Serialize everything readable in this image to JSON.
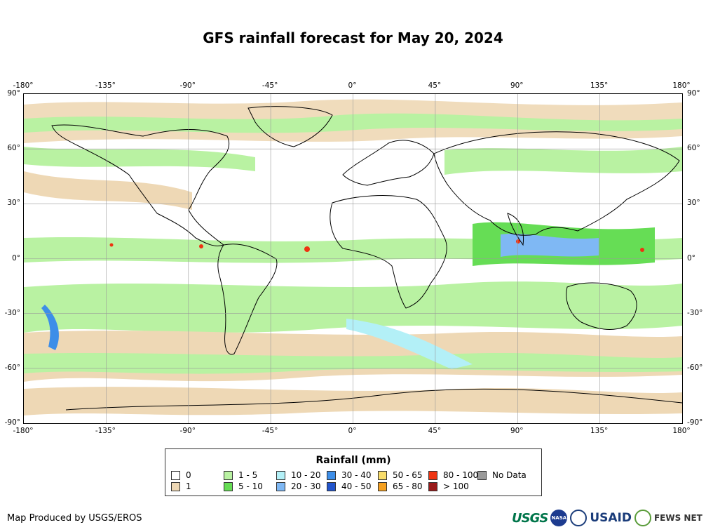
{
  "title": "GFS rainfall forecast for May 20, 2024",
  "map": {
    "lon_ticks": [
      "-180°",
      "-135°",
      "-90°",
      "-45°",
      "0°",
      "45°",
      "90°",
      "135°",
      "180°"
    ],
    "lat_ticks": [
      "90°",
      "60°",
      "30°",
      "0°",
      "-30°",
      "-60°",
      "-90°"
    ],
    "projection": "equirectangular",
    "lon_range": [
      -180,
      180
    ],
    "lat_range": [
      -90,
      90
    ],
    "grid": true
  },
  "legend": {
    "title": "Rainfall (mm)",
    "items": [
      {
        "label": "0",
        "color": "#ffffff"
      },
      {
        "label": "1",
        "color": "#eed8b5"
      },
      {
        "label": "1 - 5",
        "color": "#b9f2a2"
      },
      {
        "label": "5 - 10",
        "color": "#66dd55"
      },
      {
        "label": "10 - 20",
        "color": "#b3f0f7"
      },
      {
        "label": "20 - 30",
        "color": "#7fb8f4"
      },
      {
        "label": "30 - 40",
        "color": "#3d8ee8"
      },
      {
        "label": "40 - 50",
        "color": "#2255cc"
      },
      {
        "label": "50 - 65",
        "color": "#f9dd6a"
      },
      {
        "label": "65 - 80",
        "color": "#f5a020"
      },
      {
        "label": "80 - 100",
        "color": "#ee3311"
      },
      {
        "label": "> 100",
        "color": "#991a1a"
      },
      {
        "label": "No Data",
        "color": "#999999"
      }
    ]
  },
  "footer": {
    "credit": "Map Produced by USGS/EROS",
    "logos": [
      "USGS",
      "NASA",
      "USAID",
      "FEWS NET"
    ]
  }
}
